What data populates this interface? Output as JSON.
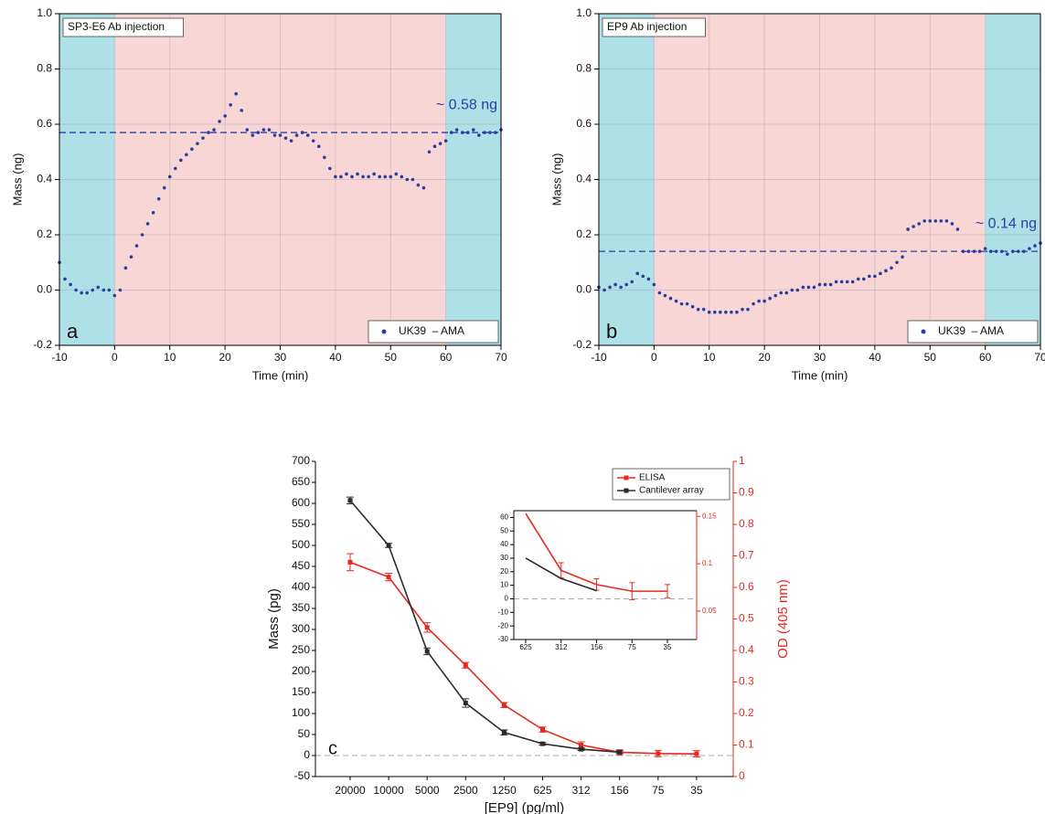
{
  "chart_data": [
    {
      "type": "scatter",
      "title": "SP3-E6 Ab injection",
      "panel_label": "a",
      "annotation": "~ 0.58 ng",
      "xlabel": "Time (min)",
      "ylabel": "Mass (ng)",
      "xlim": [
        -10,
        70
      ],
      "xticks": [
        -10,
        0,
        10,
        20,
        30,
        40,
        50,
        60,
        70
      ],
      "ylim": [
        -0.2,
        1.0
      ],
      "yticks": [
        -0.2,
        {
          "value": 0,
          "label": "0.0"
        },
        0.2,
        0.4,
        0.6,
        0.8,
        {
          "value": 1,
          "label": "1.0"
        }
      ],
      "grid": true,
      "hline": 0.57,
      "regions": [
        {
          "start": -10,
          "end": 0,
          "color": "#aee0e8"
        },
        {
          "start": 0,
          "end": 60,
          "color": "#f9d6d6"
        },
        {
          "start": 60,
          "end": 70,
          "color": "#aee0e8"
        }
      ],
      "x": [
        -10,
        -9,
        -8,
        -7,
        -6,
        -5,
        -4,
        -3,
        -2,
        -1,
        0,
        1,
        2,
        3,
        4,
        5,
        6,
        7,
        8,
        9,
        10,
        11,
        12,
        13,
        14,
        15,
        16,
        17,
        18,
        19,
        20,
        21,
        22,
        23,
        24,
        25,
        26,
        27,
        28,
        29,
        30,
        31,
        32,
        33,
        34,
        35,
        36,
        37,
        38,
        39,
        40,
        41,
        42,
        43,
        44,
        45,
        46,
        47,
        48,
        49,
        50,
        51,
        52,
        53,
        54,
        55,
        56,
        57,
        58,
        59,
        60,
        61,
        62,
        63,
        64,
        65,
        66,
        67,
        68,
        69,
        70
      ],
      "series": [
        {
          "name": "UK39  – AMA",
          "color": "#2b3ea0",
          "values": [
            0.1,
            0.04,
            0.02,
            0.0,
            -0.01,
            -0.01,
            0.0,
            0.01,
            0.0,
            0.0,
            -0.02,
            0.0,
            0.08,
            0.12,
            0.16,
            0.2,
            0.24,
            0.28,
            0.33,
            0.37,
            0.41,
            0.44,
            0.47,
            0.49,
            0.51,
            0.53,
            0.55,
            0.57,
            0.58,
            0.61,
            0.63,
            0.67,
            0.71,
            0.65,
            0.58,
            0.56,
            0.57,
            0.58,
            0.58,
            0.56,
            0.56,
            0.55,
            0.54,
            0.56,
            0.57,
            0.56,
            0.54,
            0.52,
            0.48,
            0.44,
            0.41,
            0.41,
            0.42,
            0.41,
            0.42,
            0.41,
            0.41,
            0.42,
            0.41,
            0.41,
            0.41,
            0.42,
            0.41,
            0.4,
            0.4,
            0.38,
            0.37,
            0.5,
            0.52,
            0.53,
            0.54,
            0.57,
            0.58,
            0.57,
            0.57,
            0.58,
            0.56,
            0.57,
            0.57,
            0.57,
            0.58
          ]
        }
      ]
    },
    {
      "type": "scatter",
      "title": "EP9 Ab injection",
      "panel_label": "b",
      "annotation": "~ 0.14 ng",
      "xlabel": "Time (min)",
      "ylabel": "Mass (ng)",
      "xlim": [
        -10,
        70
      ],
      "xticks": [
        -10,
        0,
        10,
        20,
        30,
        40,
        50,
        60,
        70
      ],
      "ylim": [
        -0.2,
        1.0
      ],
      "yticks": [
        -0.2,
        {
          "value": 0,
          "label": "0.0"
        },
        0.2,
        0.4,
        0.6,
        0.8,
        {
          "value": 1,
          "label": "1.0"
        }
      ],
      "grid": true,
      "hline": 0.14,
      "regions": [
        {
          "start": -10,
          "end": 0,
          "color": "#aee0e8"
        },
        {
          "start": 0,
          "end": 60,
          "color": "#f9d6d6"
        },
        {
          "start": 60,
          "end": 70,
          "color": "#aee0e8"
        }
      ],
      "x": [
        -10,
        -9,
        -8,
        -7,
        -6,
        -5,
        -4,
        -3,
        -2,
        -1,
        0,
        1,
        2,
        3,
        4,
        5,
        6,
        7,
        8,
        9,
        10,
        11,
        12,
        13,
        14,
        15,
        16,
        17,
        18,
        19,
        20,
        21,
        22,
        23,
        24,
        25,
        26,
        27,
        28,
        29,
        30,
        31,
        32,
        33,
        34,
        35,
        36,
        37,
        38,
        39,
        40,
        41,
        42,
        43,
        44,
        45,
        46,
        47,
        48,
        49,
        50,
        51,
        52,
        53,
        54,
        55,
        56,
        57,
        58,
        59,
        60,
        61,
        62,
        63,
        64,
        65,
        66,
        67,
        68,
        69,
        70
      ],
      "series": [
        {
          "name": "UK39  – AMA",
          "color": "#2b3ea0",
          "values": [
            0.01,
            0.0,
            0.01,
            0.02,
            0.01,
            0.02,
            0.03,
            0.06,
            0.05,
            0.04,
            0.02,
            -0.01,
            -0.02,
            -0.03,
            -0.04,
            -0.05,
            -0.05,
            -0.06,
            -0.07,
            -0.07,
            -0.08,
            -0.08,
            -0.08,
            -0.08,
            -0.08,
            -0.08,
            -0.07,
            -0.07,
            -0.05,
            -0.04,
            -0.04,
            -0.03,
            -0.02,
            -0.01,
            -0.01,
            0.0,
            0.0,
            0.01,
            0.01,
            0.01,
            0.02,
            0.02,
            0.02,
            0.03,
            0.03,
            0.03,
            0.03,
            0.04,
            0.04,
            0.05,
            0.05,
            0.06,
            0.07,
            0.08,
            0.1,
            0.12,
            0.22,
            0.23,
            0.24,
            0.25,
            0.25,
            0.25,
            0.25,
            0.25,
            0.24,
            0.22,
            0.14,
            0.14,
            0.14,
            0.14,
            0.15,
            0.14,
            0.14,
            0.14,
            0.13,
            0.14,
            0.14,
            0.14,
            0.15,
            0.16,
            0.17
          ]
        }
      ]
    },
    {
      "type": "line",
      "panel_label": "c",
      "xlabel": "[EP9] (pg/ml)",
      "ylabel": "Mass (pg)",
      "y2label": "OD (405 nm)",
      "categories": [
        "20000",
        "10000",
        "5000",
        "2500",
        "1250",
        "625",
        "312",
        "156",
        "75",
        "35"
      ],
      "ylim": [
        -50,
        700
      ],
      "yticks": [
        -50,
        0,
        50,
        100,
        150,
        200,
        250,
        300,
        350,
        400,
        450,
        500,
        550,
        600,
        650,
        700
      ],
      "y2lim": [
        0,
        1
      ],
      "y2ticks": [
        0,
        0.1,
        0.2,
        0.3,
        0.4,
        0.5,
        0.6,
        0.7,
        0.8,
        0.9,
        1
      ],
      "hline": 0,
      "legend": "top-right",
      "series": [
        {
          "name": "ELISA",
          "color": "#e8281e",
          "axis": "y2",
          "values": [
            0.68,
            0.633,
            0.473,
            0.353,
            0.227,
            0.149,
            0.1,
            0.077,
            0.073,
            0.072
          ],
          "errors": [
            0.027,
            0.012,
            0.015,
            0.009,
            0.008,
            0.008,
            0.01,
            0.008,
            0.01,
            0.01
          ]
        },
        {
          "name": "Cantilever array",
          "color": "#2a2a2a",
          "values": [
            607,
            500,
            248,
            125,
            55,
            28,
            15,
            8,
            null,
            null
          ],
          "errors": [
            8,
            5,
            8,
            10,
            6,
            3,
            3,
            3,
            null,
            null
          ]
        }
      ]
    },
    {
      "type": "line",
      "categories": [
        "625",
        "312",
        "156",
        "75",
        "35"
      ],
      "ylim": [
        -30,
        65
      ],
      "yticks": [
        -30,
        -20,
        -10,
        0,
        10,
        20,
        30,
        40,
        50,
        60
      ],
      "y2lim": [
        0.02,
        0.156
      ],
      "y2ticks": [
        0.05,
        0.1,
        0.15
      ],
      "hline": 0,
      "series": [
        {
          "color": "#e8281e",
          "axis": "y2",
          "values": [
            0.153,
            0.093,
            0.078,
            0.071,
            0.071
          ],
          "errors": [
            null,
            0.008,
            0.006,
            0.009,
            0.007
          ]
        },
        {
          "color": "#2a2a2a",
          "values": [
            30,
            15,
            6,
            null,
            null
          ]
        }
      ]
    }
  ]
}
